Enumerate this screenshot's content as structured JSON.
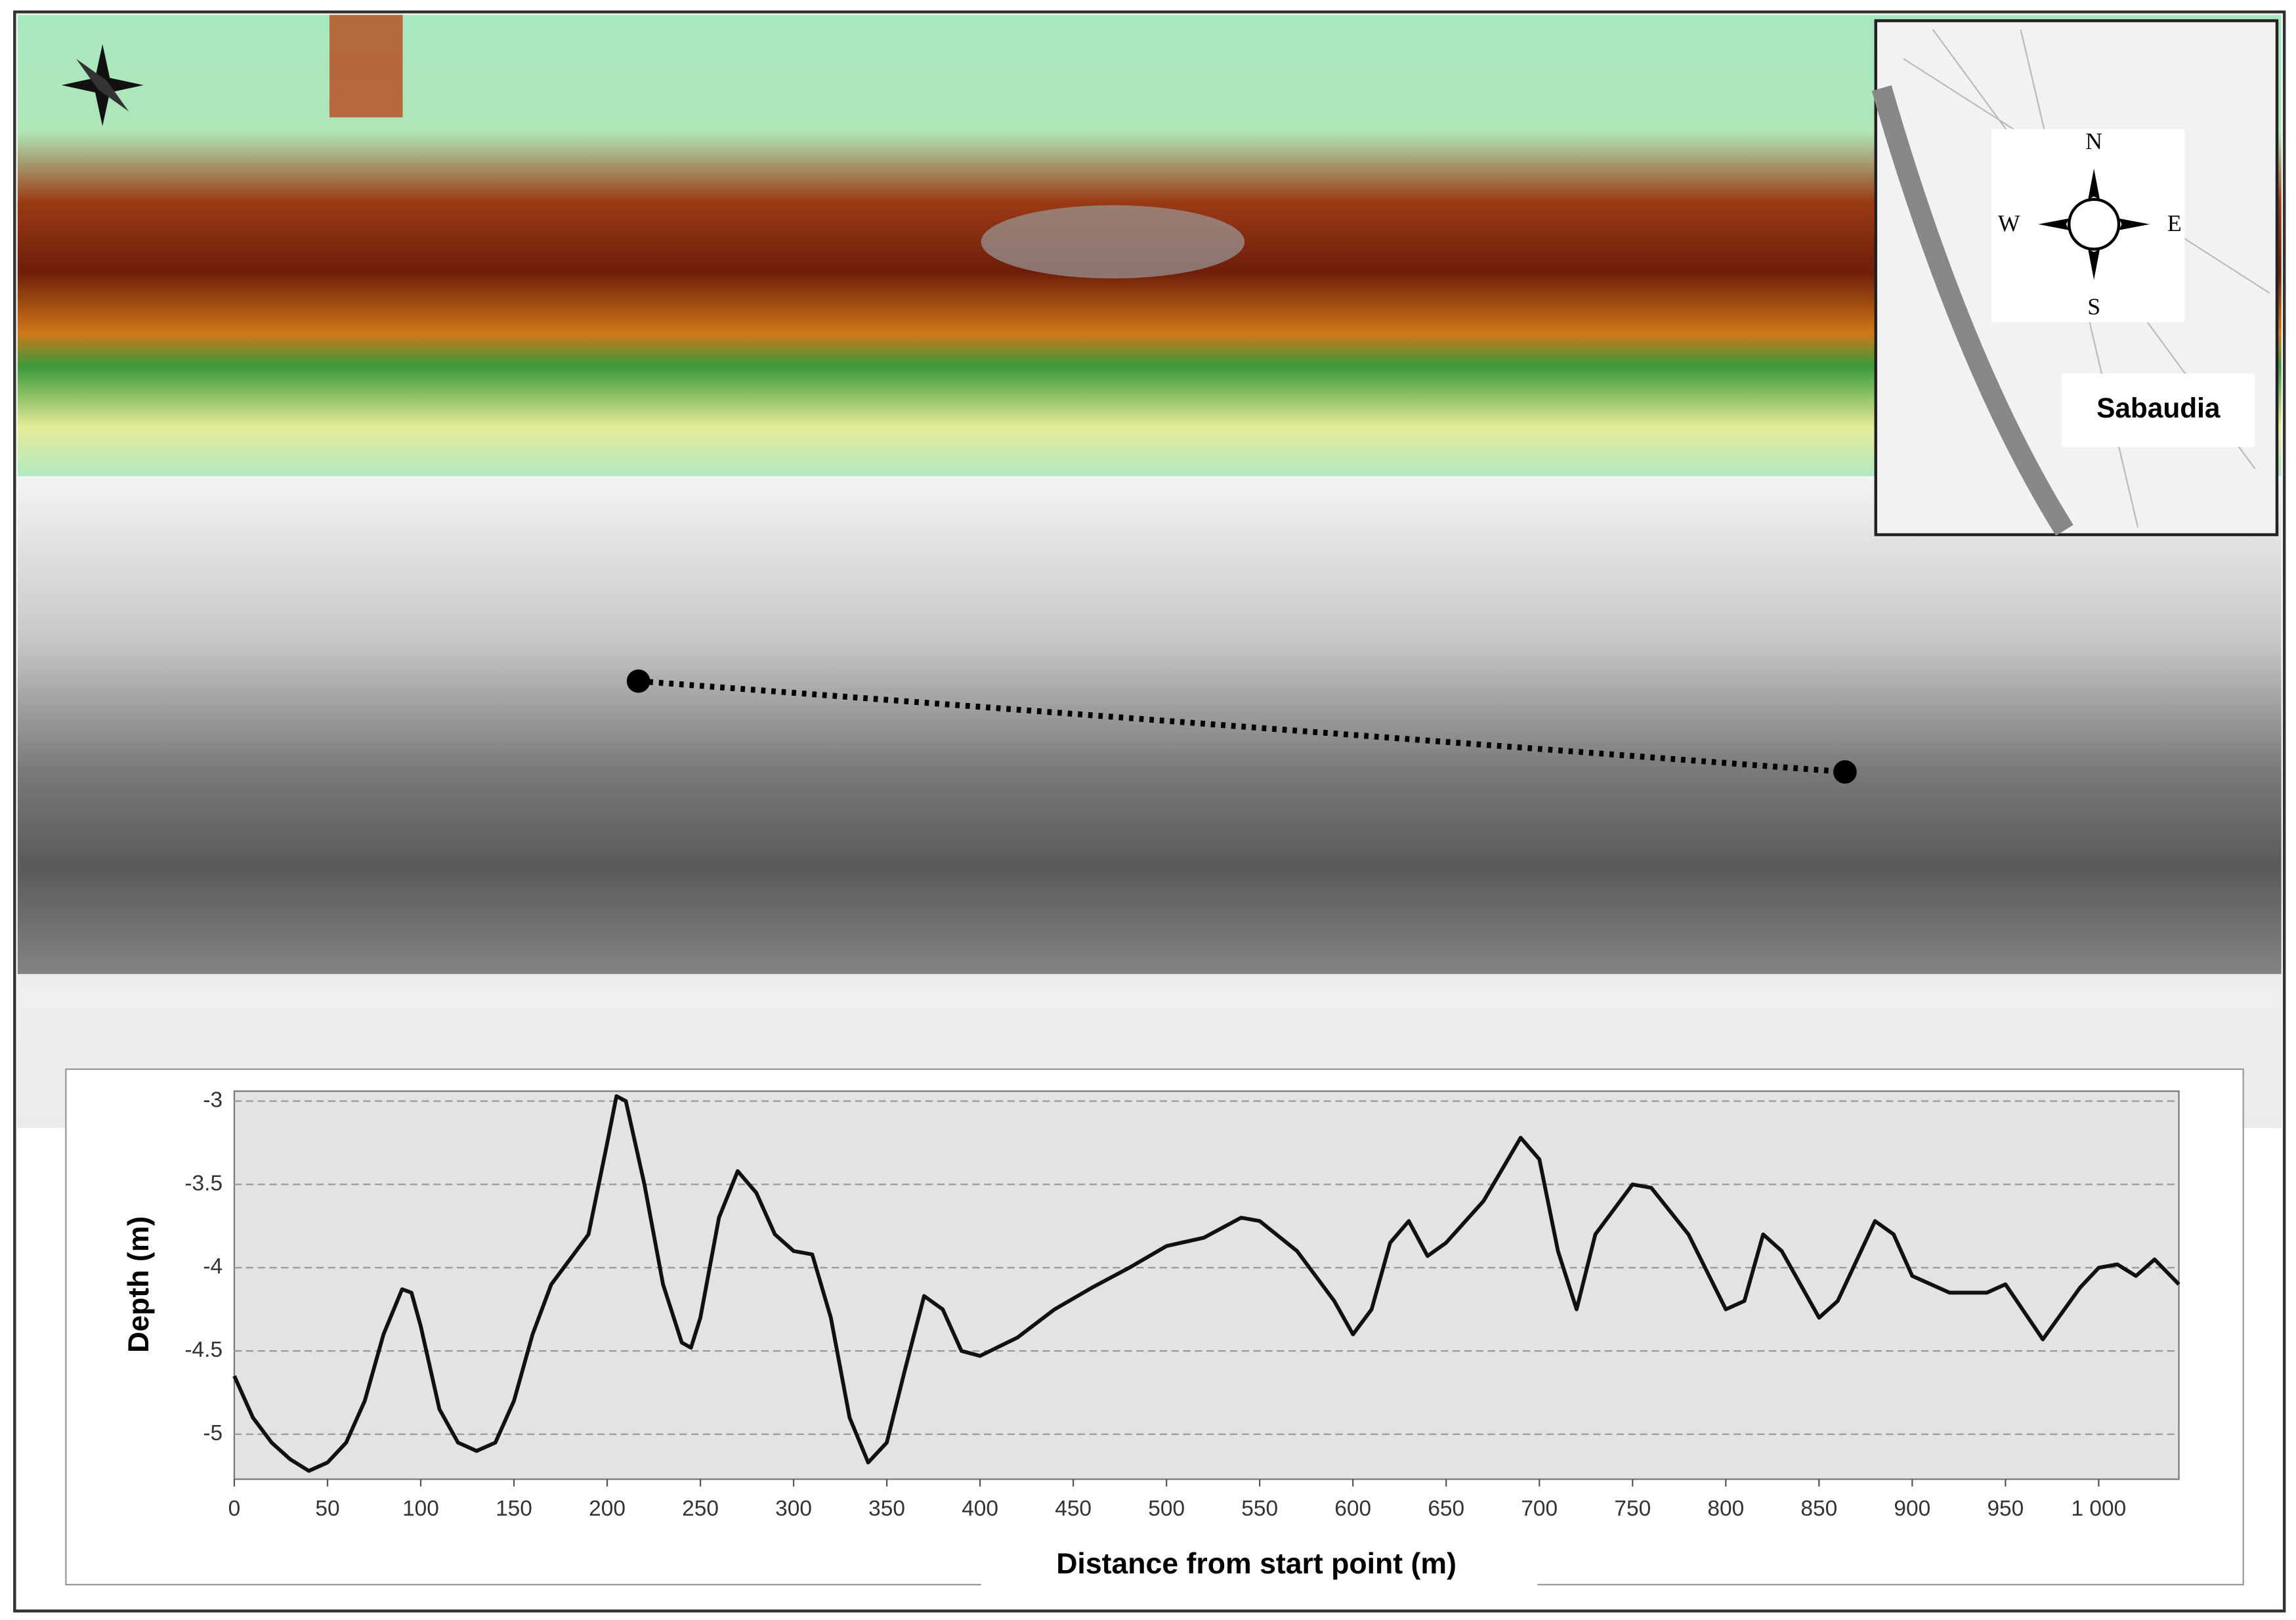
{
  "chart_data": {
    "type": "line",
    "y_label": "Depth (m)",
    "x_label": "Distance from start point (m)",
    "x": [
      0,
      10,
      20,
      30,
      40,
      50,
      60,
      70,
      80,
      90,
      95,
      100,
      110,
      120,
      130,
      140,
      150,
      160,
      170,
      180,
      190,
      200,
      205,
      210,
      220,
      230,
      240,
      245,
      250,
      260,
      270,
      280,
      290,
      300,
      310,
      320,
      330,
      340,
      350,
      360,
      370,
      380,
      390,
      400,
      420,
      440,
      460,
      480,
      500,
      520,
      540,
      550,
      570,
      590,
      600,
      610,
      620,
      630,
      640,
      650,
      670,
      690,
      700,
      710,
      720,
      730,
      750,
      760,
      780,
      800,
      810,
      820,
      830,
      850,
      860,
      880,
      890,
      900,
      920,
      940,
      950,
      970,
      990,
      1000,
      1010,
      1020,
      1030,
      1043
    ],
    "series": [
      {
        "color": "#111111",
        "values": [
          -4.65,
          -4.9,
          -5.05,
          -5.15,
          -5.22,
          -5.17,
          -5.05,
          -4.8,
          -4.4,
          -4.13,
          -4.15,
          -4.35,
          -4.85,
          -5.05,
          -5.1,
          -5.05,
          -4.8,
          -4.4,
          -4.1,
          -3.95,
          -3.8,
          -3.25,
          -2.97,
          -3.0,
          -3.5,
          -4.1,
          -4.45,
          -4.48,
          -4.3,
          -3.7,
          -3.42,
          -3.55,
          -3.8,
          -3.9,
          -3.92,
          -4.3,
          -4.9,
          -5.17,
          -5.05,
          -4.6,
          -4.17,
          -4.25,
          -4.5,
          -4.53,
          -4.42,
          -4.25,
          -4.12,
          -4.0,
          -3.87,
          -3.82,
          -3.7,
          -3.72,
          -3.9,
          -4.2,
          -4.4,
          -4.25,
          -3.85,
          -3.72,
          -3.93,
          -3.85,
          -3.6,
          -3.22,
          -3.35,
          -3.9,
          -4.25,
          -3.8,
          -3.5,
          -3.52,
          -3.8,
          -4.25,
          -4.2,
          -3.8,
          -3.9,
          -4.3,
          -4.2,
          -3.72,
          -3.8,
          -4.05,
          -4.15,
          -4.15,
          -4.1,
          -4.43,
          -4.12,
          -4.0,
          -3.98,
          -4.05,
          -3.95,
          -4.1
        ]
      }
    ],
    "xlim": [
      0,
      1043
    ],
    "xticks": [
      0,
      50,
      100,
      150,
      200,
      250,
      300,
      350,
      400,
      450,
      500,
      550,
      600,
      650,
      700,
      750,
      800,
      850,
      900,
      950,
      {
        "value": 1000,
        "label": "1 000"
      }
    ],
    "ylim": [
      -5.27,
      -2.94
    ],
    "yticks": [
      -3,
      -3.5,
      -4,
      -4.5,
      -5
    ],
    "grid": true
  },
  "inset": {
    "label": "Sabaudia",
    "compass": {
      "n": "N",
      "e": "E",
      "s": "S",
      "w": "W"
    }
  }
}
